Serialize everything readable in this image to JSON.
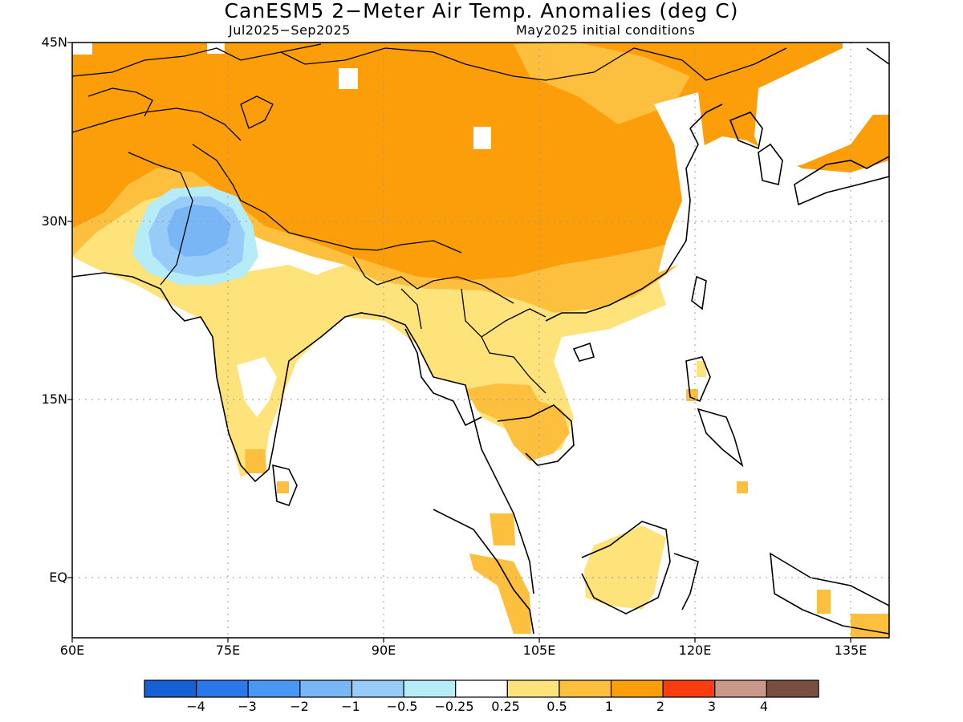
{
  "title": "CanESM5 2−Meter Air Temp. Anomalies (deg C)",
  "period": "Jul2025−Sep2025",
  "initial_conditions": "May2025 initial conditions",
  "y_ticks": [
    "45N",
    "30N",
    "15N",
    "EQ"
  ],
  "x_ticks": [
    "60E",
    "75E",
    "90E",
    "105E",
    "120E",
    "135E"
  ],
  "colorbar": {
    "colors": [
      "#1560d4",
      "#2a78ec",
      "#4a98f4",
      "#78b6f6",
      "#98ccf8",
      "#b6ecf8",
      "#ffffff",
      "#fee27a",
      "#fdbf3e",
      "#fb9e0a",
      "#fa3c10",
      "#c99888",
      "#7a4e40"
    ],
    "labels": [
      "−4",
      "−3",
      "−2",
      "−1",
      "−0.5",
      "−0.25",
      "0.25",
      "0.5",
      "1",
      "2",
      "3",
      "4"
    ]
  },
  "anomaly_regions": [
    {
      "name": "north-asia-warm",
      "level": "1 to 2",
      "color": "#fb9e0a"
    },
    {
      "name": "mongolia-warm",
      "level": "0.5 to 1",
      "color": "#fdbf3e"
    },
    {
      "name": "south-china-warm",
      "level": "0.5 to 1",
      "color": "#fdbf3e"
    },
    {
      "name": "indochina-warm",
      "level": "0.25 to 0.5",
      "color": "#fee27a"
    },
    {
      "name": "india-warm",
      "level": "0.25 to 0.5",
      "color": "#fee27a"
    },
    {
      "name": "thailand-warm",
      "level": "0.5 to 1",
      "color": "#fdbf3e"
    },
    {
      "name": "borneo-warm",
      "level": "0.25 to 0.5",
      "color": "#fee27a"
    },
    {
      "name": "pakistan-cool-outer",
      "level": "-0.5 to -0.25",
      "color": "#b6ecf8"
    },
    {
      "name": "pakistan-cool-mid",
      "level": "-1 to -0.5",
      "color": "#98ccf8"
    },
    {
      "name": "pakistan-cool-inner",
      "level": "-2 to -1",
      "color": "#78b6f6"
    }
  ]
}
